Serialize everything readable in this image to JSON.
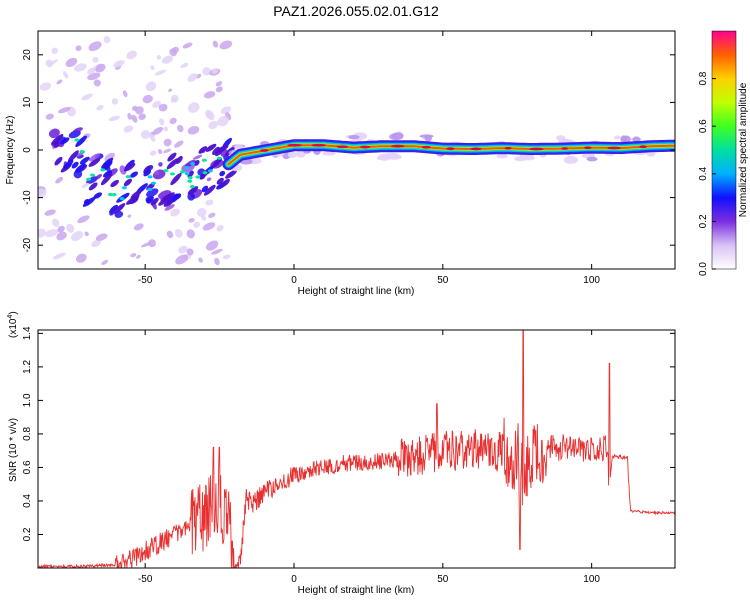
{
  "title": "PAZ1.2026.055.02.01.G12",
  "chart_data": [
    {
      "type": "heatmap",
      "name": "spectrogram",
      "xlabel": "Height of straight line (km)",
      "ylabel": "Frequency (Hz)",
      "xlim": [
        -86,
        128
      ],
      "ylim": [
        -25,
        25
      ],
      "xticks": [
        -50,
        0,
        50,
        100
      ],
      "yticks": [
        -20,
        -10,
        0,
        10,
        20
      ],
      "colorbar": {
        "label": "Normalized spectral amplitude",
        "range": [
          0,
          1
        ],
        "ticks": [
          0.0,
          0.2,
          0.4,
          0.6,
          0.8
        ]
      },
      "ridge_frequency_hz": [
        [
          -70,
          -6
        ],
        [
          -60,
          -8
        ],
        [
          -50,
          -7
        ],
        [
          -40,
          -6
        ],
        [
          -30,
          -4
        ],
        [
          -22,
          -3
        ],
        [
          -18,
          -1
        ],
        [
          0,
          1
        ],
        [
          10,
          1
        ],
        [
          20,
          0.5
        ],
        [
          30,
          0.8
        ],
        [
          40,
          0.8
        ],
        [
          50,
          0.3
        ],
        [
          60,
          0.2
        ],
        [
          70,
          0.4
        ],
        [
          80,
          0.2
        ],
        [
          90,
          0.3
        ],
        [
          100,
          0.5
        ],
        [
          110,
          0.4
        ],
        [
          120,
          0.8
        ],
        [
          128,
          0.9
        ]
      ]
    },
    {
      "type": "line",
      "name": "snr",
      "xlabel": "Height of straight line (km)",
      "ylabel": "SNR (10 * v/v)",
      "yscale_label": "(x10",
      "yscale_exponent": "4",
      "yscale_suffix": ")",
      "color": "#e83030",
      "xlim": [
        -86,
        128
      ],
      "ylim": [
        0,
        1.42
      ],
      "xticks": [
        -50,
        0,
        50,
        100
      ],
      "yticks": [
        0.2,
        0.4,
        0.6,
        0.8,
        1.0,
        1.2,
        1.4
      ],
      "series": [
        {
          "name": "SNR",
          "x": [
            -86,
            -70,
            -60,
            -55,
            -50,
            -45,
            -40,
            -35,
            -30,
            -27,
            -25,
            -22,
            -20,
            -18,
            -16,
            -14,
            -10,
            -5,
            0,
            5,
            10,
            15,
            20,
            25,
            30,
            35,
            40,
            45,
            50,
            55,
            60,
            65,
            70,
            75,
            77,
            80,
            85,
            90,
            95,
            100,
            105,
            106,
            107,
            110,
            112,
            113,
            120,
            128
          ],
          "y": [
            0.01,
            0.01,
            0.02,
            0.05,
            0.1,
            0.15,
            0.2,
            0.26,
            0.32,
            0.35,
            0.36,
            0.3,
            0.04,
            0.06,
            0.42,
            0.38,
            0.45,
            0.5,
            0.55,
            0.58,
            0.6,
            0.62,
            0.63,
            0.63,
            0.64,
            0.65,
            0.66,
            0.68,
            0.7,
            0.7,
            0.71,
            0.7,
            0.69,
            0.68,
            0.5,
            0.7,
            0.72,
            0.72,
            0.7,
            0.7,
            0.72,
            0.5,
            0.67,
            0.66,
            0.66,
            0.34,
            0.33,
            0.33
          ],
          "peaks": [
            [
              -27,
              0.72
            ],
            [
              -25,
              0.72
            ],
            [
              48,
              0.98
            ],
            [
              76,
              0.11
            ],
            [
              77,
              1.42
            ],
            [
              106,
              1.22
            ]
          ]
        }
      ]
    }
  ]
}
